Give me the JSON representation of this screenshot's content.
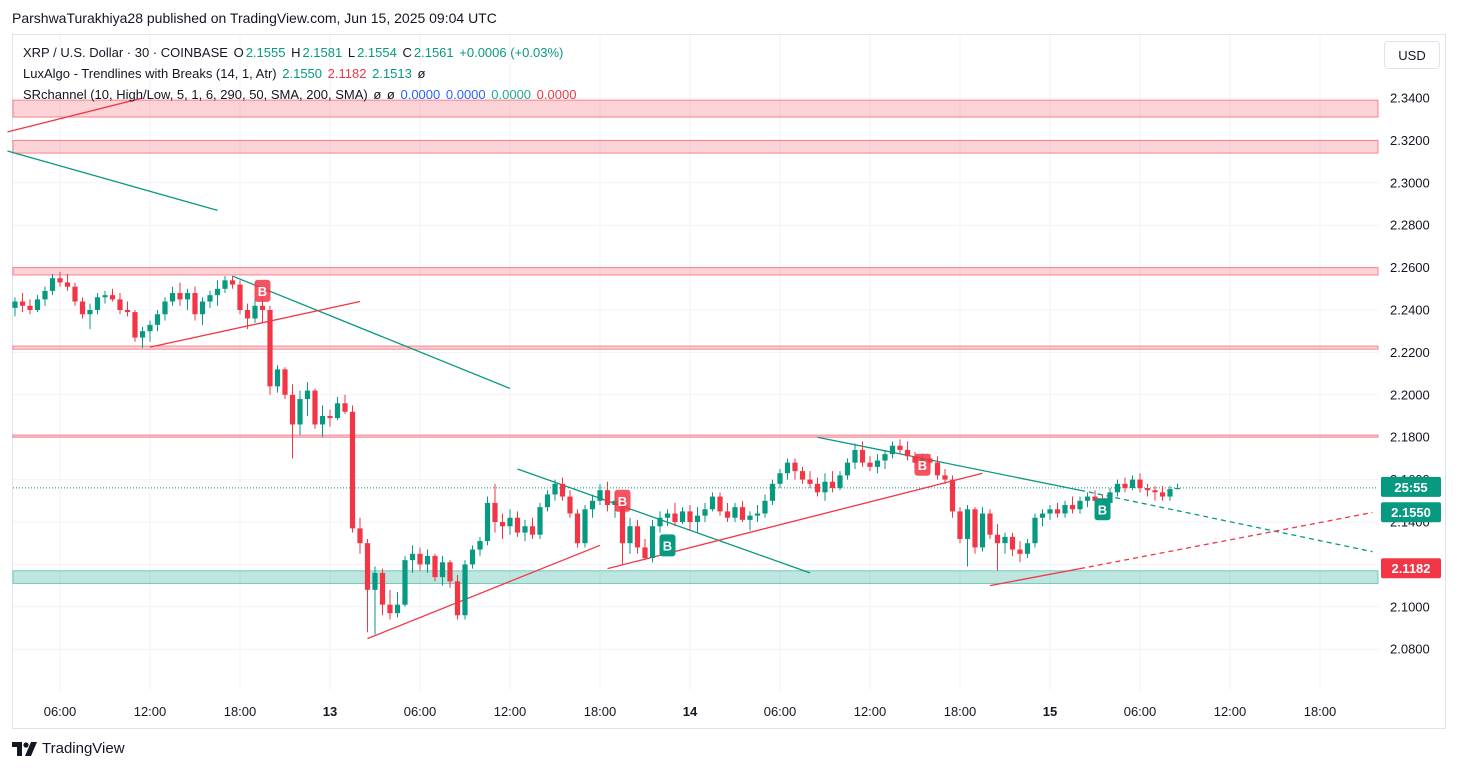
{
  "header": {
    "published": "ParshwaTurakhiya28 published on TradingView.com, Jun 15, 2025 09:04 UTC"
  },
  "legend": {
    "symbol": "XRP / U.S. Dollar · 30 · COINBASE",
    "o_label": "O",
    "o_value": "2.1555",
    "h_label": "H",
    "h_value": "2.1581",
    "l_label": "L",
    "l_value": "2.1554",
    "c_label": "C",
    "c_value": "2.1561",
    "change": "+0.0006 (+0.03%)",
    "luxalgo_label": "LuxAlgo - Trendlines with Breaks (14, 1, Atr)",
    "luxalgo_v1": "2.1550",
    "luxalgo_v2": "2.1182",
    "luxalgo_v3": "2.1513",
    "luxalgo_v4": "ø",
    "sr_label": "SRchannel (10, High/Low, 5, 1, 6, 290, 50, SMA, 200, SMA)",
    "sr_v1": "ø",
    "sr_v2": "ø",
    "sr_v3": "0.0000",
    "sr_v4": "0.0000",
    "sr_v5": "0.0000",
    "sr_v6": "0.0000"
  },
  "currency_button": "USD",
  "footer": {
    "brand": "TradingView"
  },
  "colors": {
    "up": "#089981",
    "down": "#f23645",
    "resistance_zone": "#f23645",
    "support_zone": "#22ab94",
    "trend_down": "#089981",
    "trend_up": "#f23645"
  },
  "chart_data": {
    "type": "candlestick",
    "title": "XRP / U.S. Dollar · 30 · COINBASE",
    "ylim": [
      2.07,
      2.345
    ],
    "y_ticks": [
      "2.3400",
      "2.3200",
      "2.3000",
      "2.2800",
      "2.2600",
      "2.2400",
      "2.2200",
      "2.2000",
      "2.1800",
      "2.1600",
      "2.1400",
      "2.1200",
      "2.1000",
      "2.0800"
    ],
    "x_ticks": [
      "06:00",
      "12:00",
      "18:00",
      "13",
      "06:00",
      "12:00",
      "18:00",
      "14",
      "06:00",
      "12:00",
      "18:00",
      "15",
      "06:00",
      "12:00",
      "18:00"
    ],
    "current_price": 2.1561,
    "price_labels": [
      {
        "text": "25:55",
        "value": 2.1561,
        "color": "#089981"
      },
      {
        "text": "2.1550",
        "value": 2.155,
        "color": "#089981"
      },
      {
        "text": "2.1182",
        "value": 2.1182,
        "color": "#f23645"
      }
    ],
    "zones": [
      {
        "type": "resistance",
        "from": 2.331,
        "to": 2.339
      },
      {
        "type": "resistance",
        "from": 2.314,
        "to": 2.32
      },
      {
        "type": "resistance",
        "from": 2.2565,
        "to": 2.26
      },
      {
        "type": "resistance",
        "from": 2.2215,
        "to": 2.223
      },
      {
        "type": "resistance",
        "from": 2.18,
        "to": 2.181
      },
      {
        "type": "support",
        "from": 2.111,
        "to": 2.117
      }
    ],
    "signals": [
      {
        "text": "B",
        "kind": "bear",
        "bar": 33,
        "price": 2.249
      },
      {
        "text": "B",
        "kind": "bear",
        "bar": 81,
        "price": 2.15
      },
      {
        "text": "B",
        "kind": "bull",
        "bar": 87,
        "price": 2.129
      },
      {
        "text": "B",
        "kind": "bear",
        "bar": 121,
        "price": 2.167
      },
      {
        "text": "B",
        "kind": "bull",
        "bar": 145,
        "price": 2.146
      }
    ],
    "trendlines": [
      {
        "kind": "down",
        "from": [
          -1,
          2.315
        ],
        "to": [
          27,
          2.287
        ]
      },
      {
        "kind": "up",
        "from": [
          -1,
          2.324
        ],
        "to": [
          17,
          2.34
        ]
      },
      {
        "kind": "down",
        "from": [
          29,
          2.256
        ],
        "to": [
          66,
          2.203
        ]
      },
      {
        "kind": "up",
        "from": [
          18,
          2.2225
        ],
        "to": [
          46,
          2.244
        ]
      },
      {
        "kind": "up",
        "from": [
          47,
          2.085
        ],
        "to": [
          78,
          2.129
        ]
      },
      {
        "kind": "down",
        "from": [
          67,
          2.165
        ],
        "to": [
          106,
          2.116
        ]
      },
      {
        "kind": "up",
        "from": [
          79,
          2.118
        ],
        "to": [
          129,
          2.163
        ]
      },
      {
        "kind": "down",
        "from": [
          107,
          2.18
        ],
        "to": [
          142,
          2.155
        ]
      },
      {
        "kind": "up",
        "from": [
          130,
          2.11
        ],
        "to": [
          142,
          2.118
        ]
      },
      {
        "kind": "down",
        "from": [
          142,
          2.155
        ],
        "to": [
          181,
          2.126
        ],
        "dashed": true
      },
      {
        "kind": "up",
        "from": [
          142,
          2.118
        ],
        "to": [
          181,
          2.1445
        ],
        "dashed": true
      }
    ],
    "ohlc": [
      [
        2.241,
        2.246,
        2.237,
        2.244
      ],
      [
        2.244,
        2.248,
        2.239,
        2.242
      ],
      [
        2.242,
        2.245,
        2.238,
        2.24
      ],
      [
        2.24,
        2.247,
        2.239,
        2.245
      ],
      [
        2.245,
        2.251,
        2.242,
        2.249
      ],
      [
        2.249,
        2.257,
        2.247,
        2.255
      ],
      [
        2.255,
        2.258,
        2.251,
        2.253
      ],
      [
        2.253,
        2.257,
        2.249,
        2.251
      ],
      [
        2.251,
        2.253,
        2.242,
        2.244
      ],
      [
        2.244,
        2.246,
        2.236,
        2.238
      ],
      [
        2.238,
        2.243,
        2.231,
        2.24
      ],
      [
        2.24,
        2.248,
        2.238,
        2.246
      ],
      [
        2.246,
        2.249,
        2.243,
        2.247
      ],
      [
        2.247,
        2.25,
        2.244,
        2.245
      ],
      [
        2.245,
        2.248,
        2.238,
        2.24
      ],
      [
        2.24,
        2.244,
        2.237,
        2.239
      ],
      [
        2.239,
        2.24,
        2.225,
        2.227
      ],
      [
        2.227,
        2.232,
        2.222,
        2.23
      ],
      [
        2.23,
        2.235,
        2.225,
        2.233
      ],
      [
        2.233,
        2.24,
        2.23,
        2.238
      ],
      [
        2.238,
        2.246,
        2.235,
        2.244
      ],
      [
        2.244,
        2.251,
        2.242,
        2.248
      ],
      [
        2.248,
        2.253,
        2.242,
        2.245
      ],
      [
        2.245,
        2.25,
        2.24,
        2.248
      ],
      [
        2.248,
        2.251,
        2.235,
        2.238
      ],
      [
        2.238,
        2.246,
        2.233,
        2.244
      ],
      [
        2.244,
        2.249,
        2.241,
        2.247
      ],
      [
        2.247,
        2.254,
        2.242,
        2.25
      ],
      [
        2.25,
        2.256,
        2.248,
        2.254
      ],
      [
        2.254,
        2.256,
        2.25,
        2.252
      ],
      [
        2.252,
        2.254,
        2.238,
        2.24
      ],
      [
        2.24,
        2.243,
        2.231,
        2.236
      ],
      [
        2.236,
        2.245,
        2.234,
        2.242
      ],
      [
        2.242,
        2.246,
        2.234,
        2.24
      ],
      [
        2.24,
        2.242,
        2.2,
        2.204
      ],
      [
        2.204,
        2.214,
        2.201,
        2.212
      ],
      [
        2.212,
        2.213,
        2.198,
        2.2
      ],
      [
        2.2,
        2.205,
        2.17,
        2.186
      ],
      [
        2.186,
        2.202,
        2.181,
        2.198
      ],
      [
        2.198,
        2.206,
        2.19,
        2.202
      ],
      [
        2.202,
        2.203,
        2.184,
        2.186
      ],
      [
        2.186,
        2.195,
        2.18,
        2.19
      ],
      [
        2.19,
        2.193,
        2.185,
        2.189
      ],
      [
        2.189,
        2.199,
        2.188,
        2.196
      ],
      [
        2.196,
        2.2,
        2.191,
        2.192
      ],
      [
        2.192,
        2.195,
        2.135,
        2.137
      ],
      [
        2.137,
        2.142,
        2.125,
        2.13
      ],
      [
        2.13,
        2.132,
        2.088,
        2.108
      ],
      [
        2.108,
        2.119,
        2.087,
        2.116
      ],
      [
        2.116,
        2.118,
        2.096,
        2.101
      ],
      [
        2.101,
        2.108,
        2.094,
        2.097
      ],
      [
        2.097,
        2.107,
        2.095,
        2.101
      ],
      [
        2.101,
        2.124,
        2.1,
        2.122
      ],
      [
        2.122,
        2.129,
        2.116,
        2.125
      ],
      [
        2.125,
        2.128,
        2.117,
        2.12
      ],
      [
        2.12,
        2.127,
        2.116,
        2.124
      ],
      [
        2.124,
        2.125,
        2.112,
        2.114
      ],
      [
        2.114,
        2.124,
        2.11,
        2.121
      ],
      [
        2.121,
        2.122,
        2.109,
        2.112
      ],
      [
        2.112,
        2.115,
        2.094,
        2.096
      ],
      [
        2.096,
        2.122,
        2.094,
        2.12
      ],
      [
        2.12,
        2.129,
        2.118,
        2.127
      ],
      [
        2.127,
        2.133,
        2.124,
        2.131
      ],
      [
        2.131,
        2.152,
        2.129,
        2.149
      ],
      [
        2.149,
        2.158,
        2.135,
        2.14
      ],
      [
        2.14,
        2.144,
        2.132,
        2.138
      ],
      [
        2.138,
        2.146,
        2.134,
        2.142
      ],
      [
        2.142,
        2.145,
        2.133,
        2.135
      ],
      [
        2.135,
        2.141,
        2.131,
        2.138
      ],
      [
        2.138,
        2.142,
        2.132,
        2.134
      ],
      [
        2.134,
        2.149,
        2.132,
        2.147
      ],
      [
        2.147,
        2.155,
        2.145,
        2.153
      ],
      [
        2.153,
        2.16,
        2.15,
        2.158
      ],
      [
        2.158,
        2.161,
        2.15,
        2.152
      ],
      [
        2.152,
        2.155,
        2.142,
        2.144
      ],
      [
        2.144,
        2.146,
        2.128,
        2.13
      ],
      [
        2.13,
        2.148,
        2.128,
        2.146
      ],
      [
        2.146,
        2.153,
        2.142,
        2.15
      ],
      [
        2.15,
        2.158,
        2.148,
        2.155
      ],
      [
        2.155,
        2.159,
        2.145,
        2.148
      ],
      [
        2.148,
        2.154,
        2.142,
        2.15
      ],
      [
        2.15,
        2.152,
        2.12,
        2.13
      ],
      [
        2.13,
        2.142,
        2.125,
        2.138
      ],
      [
        2.138,
        2.141,
        2.125,
        2.128
      ],
      [
        2.128,
        2.132,
        2.122,
        2.123
      ],
      [
        2.123,
        2.141,
        2.121,
        2.138
      ],
      [
        2.138,
        2.145,
        2.135,
        2.142
      ],
      [
        2.142,
        2.146,
        2.138,
        2.144
      ],
      [
        2.144,
        2.149,
        2.138,
        2.14
      ],
      [
        2.14,
        2.147,
        2.139,
        2.145
      ],
      [
        2.145,
        2.148,
        2.136,
        2.14
      ],
      [
        2.14,
        2.147,
        2.135,
        2.143
      ],
      [
        2.143,
        2.149,
        2.14,
        2.146
      ],
      [
        2.146,
        2.154,
        2.145,
        2.152
      ],
      [
        2.152,
        2.154,
        2.143,
        2.145
      ],
      [
        2.145,
        2.149,
        2.14,
        2.142
      ],
      [
        2.142,
        2.149,
        2.14,
        2.147
      ],
      [
        2.147,
        2.15,
        2.14,
        2.141
      ],
      [
        2.141,
        2.145,
        2.136,
        2.143
      ],
      [
        2.143,
        2.148,
        2.14,
        2.144
      ],
      [
        2.144,
        2.153,
        2.142,
        2.15
      ],
      [
        2.15,
        2.16,
        2.148,
        2.158
      ],
      [
        2.158,
        2.165,
        2.156,
        2.163
      ],
      [
        2.163,
        2.17,
        2.16,
        2.168
      ],
      [
        2.168,
        2.17,
        2.16,
        2.164
      ],
      [
        2.164,
        2.166,
        2.158,
        2.16
      ],
      [
        2.16,
        2.164,
        2.156,
        2.158
      ],
      [
        2.158,
        2.161,
        2.152,
        2.154
      ],
      [
        2.154,
        2.163,
        2.15,
        2.159
      ],
      [
        2.159,
        2.164,
        2.154,
        2.156
      ],
      [
        2.156,
        2.164,
        2.155,
        2.162
      ],
      [
        2.162,
        2.17,
        2.16,
        2.168
      ],
      [
        2.168,
        2.177,
        2.165,
        2.174
      ],
      [
        2.174,
        2.178,
        2.166,
        2.168
      ],
      [
        2.168,
        2.171,
        2.164,
        2.166
      ],
      [
        2.166,
        2.172,
        2.163,
        2.169
      ],
      [
        2.169,
        2.174,
        2.165,
        2.172
      ],
      [
        2.172,
        2.178,
        2.17,
        2.176
      ],
      [
        2.176,
        2.179,
        2.172,
        2.174
      ],
      [
        2.174,
        2.178,
        2.169,
        2.171
      ],
      [
        2.171,
        2.173,
        2.165,
        2.168
      ],
      [
        2.168,
        2.172,
        2.164,
        2.17
      ],
      [
        2.17,
        2.172,
        2.165,
        2.168
      ],
      [
        2.168,
        2.171,
        2.16,
        2.162
      ],
      [
        2.162,
        2.165,
        2.158,
        2.16
      ],
      [
        2.16,
        2.162,
        2.142,
        2.145
      ],
      [
        2.145,
        2.147,
        2.13,
        2.132
      ],
      [
        2.132,
        2.148,
        2.119,
        2.146
      ],
      [
        2.146,
        2.147,
        2.125,
        2.128
      ],
      [
        2.128,
        2.147,
        2.126,
        2.144
      ],
      [
        2.144,
        2.146,
        2.132,
        2.134
      ],
      [
        2.134,
        2.139,
        2.117,
        2.13
      ],
      [
        2.13,
        2.135,
        2.125,
        2.133
      ],
      [
        2.133,
        2.135,
        2.124,
        2.127
      ],
      [
        2.127,
        2.131,
        2.121,
        2.125
      ],
      [
        2.125,
        2.132,
        2.123,
        2.13
      ],
      [
        2.13,
        2.144,
        2.128,
        2.142
      ],
      [
        2.142,
        2.146,
        2.138,
        2.144
      ],
      [
        2.144,
        2.148,
        2.141,
        2.146
      ],
      [
        2.146,
        2.149,
        2.142,
        2.144
      ],
      [
        2.144,
        2.15,
        2.142,
        2.148
      ],
      [
        2.148,
        2.152,
        2.144,
        2.146
      ],
      [
        2.146,
        2.152,
        2.144,
        2.15
      ],
      [
        2.15,
        2.154,
        2.147,
        2.152
      ],
      [
        2.152,
        2.155,
        2.148,
        2.15
      ],
      [
        2.15,
        2.153,
        2.146,
        2.149
      ],
      [
        2.149,
        2.156,
        2.147,
        2.154
      ],
      [
        2.154,
        2.16,
        2.152,
        2.158
      ],
      [
        2.158,
        2.161,
        2.154,
        2.156
      ],
      [
        2.156,
        2.162,
        2.155,
        2.16
      ],
      [
        2.16,
        2.163,
        2.154,
        2.156
      ],
      [
        2.156,
        2.158,
        2.152,
        2.155
      ],
      [
        2.155,
        2.157,
        2.15,
        2.154
      ],
      [
        2.154,
        2.157,
        2.15,
        2.152
      ],
      [
        2.152,
        2.157,
        2.15,
        2.1555
      ],
      [
        2.1555,
        2.1581,
        2.1554,
        2.1561
      ]
    ]
  }
}
